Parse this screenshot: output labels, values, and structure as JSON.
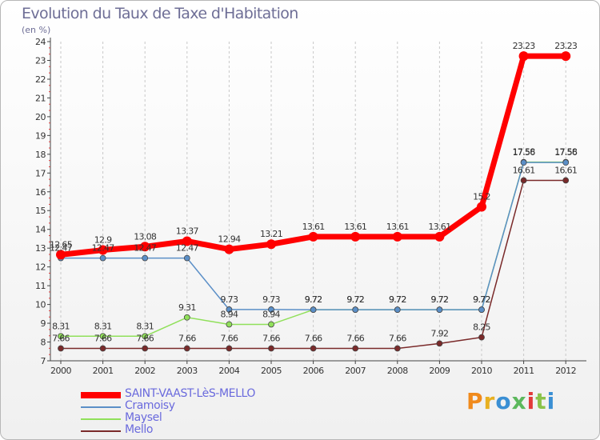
{
  "chart_data": {
    "type": "line",
    "title": "Evolution du Taux de Taxe d'Habitation",
    "subtitle": "(en %)",
    "xlabel": "",
    "ylabel": "",
    "ylim": [
      7,
      24
    ],
    "y_ticks": [
      "7",
      "8",
      "9",
      "10",
      "11",
      "12",
      "13",
      "14",
      "15",
      "16",
      "17",
      "18",
      "19",
      "20",
      "21",
      "22",
      "23",
      "24"
    ],
    "categories": [
      "2000",
      "2001",
      "2002",
      "2003",
      "2004",
      "2005",
      "2006",
      "2007",
      "2008",
      "2009",
      "2010",
      "2011",
      "2012"
    ],
    "grid": "vertical dashed",
    "legend_position": "bottom-left",
    "series": [
      {
        "name": "SAINT-VAAST-LèS-MELLO",
        "color": "#ff0000",
        "values": [
          12.65,
          12.9,
          13.08,
          13.37,
          12.94,
          13.21,
          13.61,
          13.61,
          13.61,
          13.61,
          15.2,
          23.23,
          23.23
        ],
        "labels": [
          "12.65",
          "12.9",
          "13.08",
          "13.37",
          "12.94",
          "13.21",
          "13.61",
          "13.61",
          "13.61",
          "13.61",
          "15.2",
          "23.23",
          "23.23"
        ]
      },
      {
        "name": "Cramoisy",
        "color": "#5b8fc7",
        "values": [
          12.47,
          12.47,
          12.47,
          12.47,
          9.73,
          9.73,
          9.72,
          9.72,
          9.72,
          9.72,
          9.72,
          17.56,
          17.56
        ],
        "labels": [
          "12.47",
          "12.47",
          "12.47",
          "12.47",
          "9.73",
          "9.73",
          "9.72",
          "9.72",
          "9.72",
          "9.72",
          "9.72",
          "17.56",
          "17.56"
        ]
      },
      {
        "name": "Maysel",
        "color": "#90e05a",
        "values": [
          8.31,
          8.31,
          8.31,
          9.31,
          8.94,
          8.94,
          9.72,
          9.72,
          9.72,
          9.72,
          9.72,
          17.58,
          17.58
        ],
        "labels": [
          "8.31",
          "8.31",
          "8.31",
          "9.31",
          "8.94",
          "8.94",
          "9.72",
          "9.72",
          "9.72",
          "9.72",
          "9.72",
          "17.58",
          "17.58"
        ]
      },
      {
        "name": "Mello",
        "color": "#7a2a2a",
        "values": [
          7.66,
          7.66,
          7.66,
          7.66,
          7.66,
          7.66,
          7.66,
          7.66,
          7.66,
          7.92,
          8.25,
          16.61,
          16.61
        ],
        "labels": [
          "7.66",
          "7.66",
          "7.66",
          "7.66",
          "7.66",
          "7.66",
          "7.66",
          "7.66",
          "7.66",
          "7.92",
          "8.25",
          "16.61",
          "16.61"
        ]
      }
    ]
  },
  "brand": {
    "text": "Proxiti",
    "colors": [
      "#f08a1c",
      "#e8b020",
      "#3a8fd4",
      "#5cb85c",
      "#e23a3a",
      "#8bc34a",
      "#3a8fd4"
    ]
  }
}
